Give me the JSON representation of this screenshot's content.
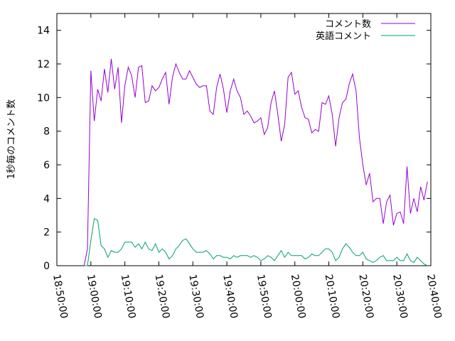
{
  "chart_data": {
    "type": "line",
    "ylabel": "1秒毎のコメント数",
    "xlabel": "",
    "ylim": [
      0,
      15
    ],
    "xlim": [
      "18:50:00",
      "20:40:00"
    ],
    "x_ticks": [
      "18:50:00",
      "19:00:00",
      "19:10:00",
      "19:20:00",
      "19:30:00",
      "19:40:00",
      "19:50:00",
      "20:00:00",
      "20:10:00",
      "20:20:00",
      "20:30:00",
      "20:40:00"
    ],
    "y_ticks": [
      "0",
      "2",
      "4",
      "6",
      "8",
      "10",
      "12",
      "14"
    ],
    "grid": false,
    "legend_position": "top-right",
    "x_start": "18:58:00",
    "x_step_seconds": 60,
    "series": [
      {
        "name": "コメント数",
        "color": "#9400d3",
        "values": [
          0,
          1.0,
          11.6,
          8.6,
          10.5,
          9.8,
          11.7,
          10.3,
          12.3,
          10.5,
          11.8,
          8.5,
          10.7,
          11.8,
          11.3,
          10.0,
          11.8,
          11.9,
          9.7,
          9.8,
          10.7,
          10.4,
          10.6,
          11.1,
          11.5,
          9.6,
          11.2,
          12.0,
          11.5,
          11.1,
          11.1,
          11.6,
          11.2,
          10.8,
          10.6,
          10.7,
          10.7,
          9.2,
          9.0,
          10.6,
          11.4,
          10.5,
          9.1,
          10.4,
          11.1,
          10.4,
          10.0,
          9.0,
          9.2,
          8.9,
          8.5,
          8.6,
          8.8,
          7.8,
          8.2,
          9.7,
          10.4,
          9.0,
          7.4,
          8.4,
          11.2,
          11.5,
          10.2,
          10.4,
          9.4,
          8.8,
          8.7,
          7.9,
          8.1,
          8.0,
          9.7,
          9.6,
          10.1,
          9.0,
          7.1,
          8.8,
          9.7,
          9.9,
          10.8,
          11.4,
          10.4,
          7.6,
          6.0,
          4.8,
          5.5,
          3.8,
          4.0,
          4.0,
          2.5,
          3.8,
          4.2,
          2.4,
          3.1,
          3.2,
          2.5,
          5.9,
          3.1,
          4.0,
          3.2,
          4.7,
          3.9,
          5.0
        ]
      },
      {
        "name": "英語コメント",
        "color": "#009e73",
        "values": [
          0,
          0,
          1.5,
          2.8,
          2.7,
          1.2,
          1.0,
          0.5,
          0.9,
          0.8,
          0.8,
          1.0,
          1.4,
          1.4,
          1.4,
          1.1,
          1.3,
          1.0,
          1.4,
          1.0,
          0.9,
          1.3,
          0.8,
          1.0,
          0.8,
          0.4,
          0.6,
          1.0,
          1.2,
          1.5,
          1.6,
          1.3,
          1.0,
          0.8,
          0.8,
          0.8,
          0.9,
          0.7,
          0.4,
          0.6,
          0.6,
          0.5,
          0.5,
          0.4,
          0.6,
          0.5,
          0.6,
          0.6,
          0.6,
          0.5,
          0.6,
          0.5,
          0.3,
          0.4,
          0.6,
          0.5,
          0.3,
          0.6,
          0.9,
          0.5,
          0.8,
          0.6,
          0.6,
          0.6,
          0.6,
          0.4,
          0.5,
          0.7,
          0.6,
          0.6,
          0.8,
          1.0,
          1.0,
          0.8,
          0.3,
          0.5,
          1.0,
          1.3,
          1.1,
          0.8,
          0.6,
          0.6,
          0.8,
          0.4,
          0.3,
          0.2,
          0.3,
          0.5,
          0.6,
          0.3,
          0.3,
          0.3,
          0.5,
          0.3,
          0.3,
          0.7,
          0.3,
          0.2,
          0.5,
          0.3,
          0.1,
          0.0
        ]
      }
    ]
  }
}
